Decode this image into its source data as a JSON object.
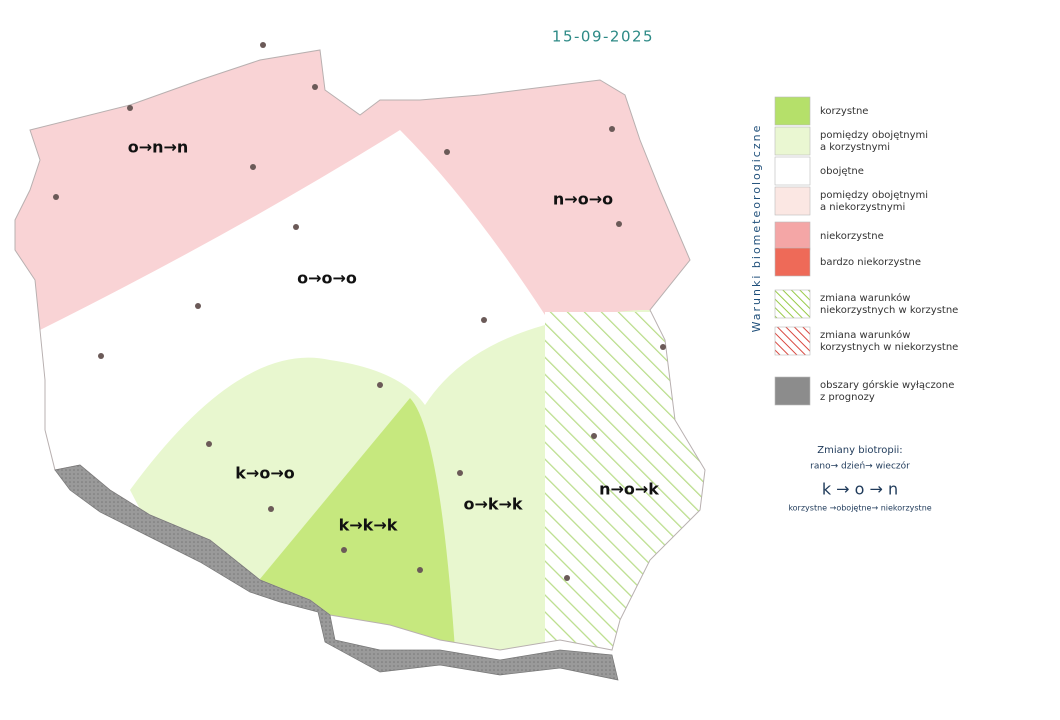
{
  "date": "15-09-2025",
  "regions": [
    {
      "label": "o→n→n"
    },
    {
      "label": "n→o→o"
    },
    {
      "label": "o→o→o"
    },
    {
      "label": "k→o→o"
    },
    {
      "label": "k→k→k"
    },
    {
      "label": "o→k→k"
    },
    {
      "label": "n→o→k"
    }
  ],
  "legend": {
    "title": "Warunki biometeorologiczne",
    "items": [
      {
        "lines": [
          "korzystne"
        ],
        "color": "#b5e06a",
        "hatch": false
      },
      {
        "lines": [
          "pomiędzy obojętnymi",
          "a korzystnymi"
        ],
        "color": "#eaf7d2",
        "hatch": false
      },
      {
        "lines": [
          "obojętne"
        ],
        "color": "#ffffff",
        "hatch": false
      },
      {
        "lines": [
          "pomiędzy obojętnymi",
          "a niekorzystnymi"
        ],
        "color": "#fbe7e3",
        "hatch": false
      },
      {
        "lines": [
          "niekorzystne"
        ],
        "color": "#f4a6a6",
        "hatch": false
      },
      {
        "lines": [
          "bardzo niekorzystne"
        ],
        "color": "#ee6a58",
        "hatch": false
      },
      {
        "lines": [
          "zmiana warunków",
          "niekorzystnych w korzystne"
        ],
        "color": "#9acb4a",
        "hatch": true
      },
      {
        "lines": [
          "zmiana warunków",
          "korzystnych w niekorzystne"
        ],
        "color": "#d9463e",
        "hatch": true
      },
      {
        "lines": [
          "obszary górskie wyłączone",
          "z prognozy"
        ],
        "color": "#8c8c8c",
        "hatch": false
      }
    ]
  },
  "biotropy": {
    "title": "Zmiany biotropii:",
    "times": "rano→ dzień→ wieczór",
    "example": "k → o → n",
    "meanings": "korzystne →obojętne→ niekorzystne"
  }
}
